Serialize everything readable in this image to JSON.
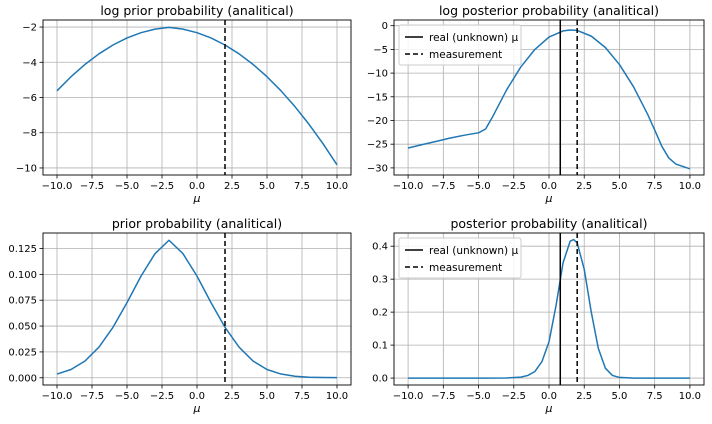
{
  "figure": {
    "xlabel": "μ"
  },
  "colors": {
    "curve": "#1f77b4",
    "grid": "#b0b0b0",
    "axes": "#000000",
    "marker": "#000000"
  },
  "legend": {
    "real": "real (unknown) μ",
    "measurement": "measurement"
  },
  "chart_data": [
    {
      "type": "line",
      "title": "log prior probability (analitical)",
      "xlabel": "μ",
      "ylabel": "",
      "xlim": [
        -11.0,
        11.0
      ],
      "ylim": [
        -10.4,
        -1.6
      ],
      "xticks": [
        "−10.0",
        "−7.5",
        "−5.0",
        "−2.5",
        "0.0",
        "2.5",
        "5.0",
        "7.5",
        "10.0"
      ],
      "yticks": [
        "−10",
        "−8",
        "−6",
        "−4",
        "−2"
      ],
      "grid": true,
      "legend": null,
      "measurement": 2.0,
      "real_mu": null,
      "series": [
        {
          "x": [
            -10,
            -9,
            -8,
            -7,
            -6,
            -5,
            -4,
            -3,
            -2,
            -1,
            0,
            1,
            2,
            3,
            4,
            5,
            6,
            7,
            8,
            9,
            10
          ],
          "y": [
            -5.62,
            -4.82,
            -4.12,
            -3.52,
            -3.02,
            -2.62,
            -2.32,
            -2.12,
            -2.02,
            -2.12,
            -2.32,
            -2.62,
            -3.02,
            -3.52,
            -4.12,
            -4.82,
            -5.62,
            -6.52,
            -7.52,
            -8.62,
            -9.82
          ]
        }
      ]
    },
    {
      "type": "line",
      "title": "log posterior probability (analitical)",
      "xlabel": "μ",
      "ylabel": "",
      "xlim": [
        -11.0,
        11.0
      ],
      "ylim": [
        -31.5,
        1.2
      ],
      "xticks": [
        "−10.0",
        "−7.5",
        "−5.0",
        "−2.5",
        "0.0",
        "2.5",
        "5.0",
        "7.5",
        "10.0"
      ],
      "yticks": [
        "−30",
        "−25",
        "−20",
        "−15",
        "−10",
        "−5",
        "0"
      ],
      "grid": true,
      "legend": "top-left",
      "measurement": 2.0,
      "real_mu": 0.8,
      "series": [
        {
          "x": [
            -10,
            -9,
            -8,
            -7,
            -6,
            -5,
            -4.5,
            -4,
            -3,
            -2,
            -1,
            0,
            1,
            1.5,
            2,
            3,
            4,
            5,
            6,
            7,
            7.5,
            8,
            8.5,
            9,
            10
          ],
          "y": [
            -25.8,
            -25.1,
            -24.4,
            -23.7,
            -23.1,
            -22.6,
            -21.8,
            -19.2,
            -13.5,
            -8.7,
            -5.0,
            -2.4,
            -1.1,
            -0.9,
            -1.0,
            -2.2,
            -4.6,
            -8.2,
            -12.9,
            -18.7,
            -22.0,
            -25.4,
            -27.9,
            -29.2,
            -30.2
          ]
        }
      ]
    },
    {
      "type": "line",
      "title": "prior probability (analitical)",
      "xlabel": "μ",
      "ylabel": "",
      "xlim": [
        -11.0,
        11.0
      ],
      "ylim": [
        -0.007,
        0.14
      ],
      "xticks": [
        "−10.0",
        "−7.5",
        "−5.0",
        "−2.5",
        "0.0",
        "2.5",
        "5.0",
        "7.5",
        "10.0"
      ],
      "yticks": [
        "0.000",
        "0.025",
        "0.050",
        "0.075",
        "0.100",
        "0.125"
      ],
      "grid": true,
      "legend": null,
      "measurement": 2.0,
      "real_mu": null,
      "series": [
        {
          "x": [
            -10,
            -9,
            -8,
            -7,
            -6,
            -5,
            -4,
            -3,
            -2,
            -1,
            0,
            1,
            2,
            3,
            4,
            5,
            6,
            7,
            8,
            9,
            10
          ],
          "y": [
            0.0036,
            0.008,
            0.0162,
            0.0297,
            0.0488,
            0.0727,
            0.0983,
            0.12,
            0.133,
            0.12,
            0.0983,
            0.0727,
            0.0488,
            0.0297,
            0.0162,
            0.008,
            0.0036,
            0.0015,
            0.0005,
            0.0002,
            0.0001
          ]
        }
      ]
    },
    {
      "type": "line",
      "title": "posterior probability (analitical)",
      "xlabel": "μ",
      "ylabel": "",
      "xlim": [
        -11.0,
        11.0
      ],
      "ylim": [
        -0.021,
        0.44
      ],
      "xticks": [
        "−10.0",
        "−7.5",
        "−5.0",
        "−2.5",
        "0.0",
        "2.5",
        "5.0",
        "7.5",
        "10.0"
      ],
      "yticks": [
        "0.0",
        "0.1",
        "0.2",
        "0.3",
        "0.4"
      ],
      "grid": true,
      "legend": "top-left",
      "measurement": 2.0,
      "real_mu": 0.8,
      "series": [
        {
          "x": [
            -10,
            -5,
            -3,
            -2,
            -1.5,
            -1,
            -0.5,
            0,
            0.5,
            1,
            1.5,
            1.75,
            2,
            2.5,
            3,
            3.5,
            4,
            4.5,
            5,
            6,
            10
          ],
          "y": [
            0,
            0,
            0.0004,
            0.003,
            0.008,
            0.02,
            0.05,
            0.11,
            0.22,
            0.35,
            0.415,
            0.42,
            0.41,
            0.33,
            0.2,
            0.09,
            0.03,
            0.008,
            0.002,
            0,
            0
          ]
        }
      ]
    }
  ]
}
